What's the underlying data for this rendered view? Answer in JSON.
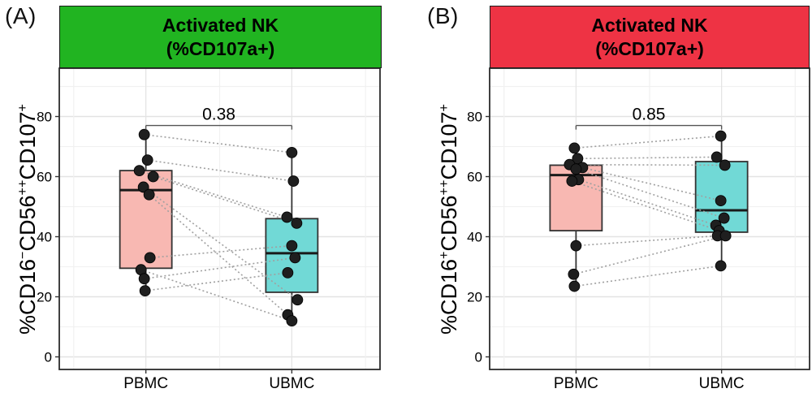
{
  "chart_data": [
    {
      "type": "box",
      "panel_tag": "(A)",
      "title_line1": "Activated NK",
      "title_line2": "(%CD107a+)",
      "header_bg": "#21B421",
      "ylabel": "%CD16-CD56++CD107+",
      "ylabel_segments": [
        [
          "%CD16",
          false
        ],
        [
          "−",
          true
        ],
        [
          "CD56",
          false
        ],
        [
          "++",
          true
        ],
        [
          "CD107",
          false
        ],
        [
          "+",
          true
        ]
      ],
      "categories": [
        "PBMC",
        "UBMC"
      ],
      "yticks": [
        0,
        20,
        40,
        60,
        80
      ],
      "yticks_minor": [
        10,
        30,
        50,
        70,
        90
      ],
      "ylim": [
        -4,
        96
      ],
      "p_value": "0.38",
      "bracket_y": 77,
      "boxes": [
        {
          "category": "PBMC",
          "fill": "#F8B8B2",
          "q1": 29.5,
          "median": 55.5,
          "q3": 62,
          "whisker_low": 22,
          "whisker_high": 74
        },
        {
          "category": "UBMC",
          "fill": "#71D9D6",
          "q1": 21.5,
          "median": 34.5,
          "q3": 46,
          "whisker_low": 12,
          "whisker_high": 68
        }
      ],
      "pairs": [
        {
          "pbmc": 74,
          "ubmc": 68,
          "jp": -2,
          "ju": 0
        },
        {
          "pbmc": 65.5,
          "ubmc": 58.5,
          "jp": 2,
          "ju": 2
        },
        {
          "pbmc": 62,
          "ubmc": 46.5,
          "jp": -8,
          "ju": -6
        },
        {
          "pbmc": 60,
          "ubmc": 44.5,
          "jp": 9,
          "ju": 6
        },
        {
          "pbmc": 56.5,
          "ubmc": 19,
          "jp": -3,
          "ju": 7
        },
        {
          "pbmc": 54,
          "ubmc": 14,
          "jp": 4,
          "ju": -5
        },
        {
          "pbmc": 33,
          "ubmc": 37,
          "jp": 5,
          "ju": 0
        },
        {
          "pbmc": 29,
          "ubmc": 12,
          "jp": -6,
          "ju": 0
        },
        {
          "pbmc": 26,
          "ubmc": 33,
          "jp": -2,
          "ju": 4
        },
        {
          "pbmc": 22,
          "ubmc": 28,
          "jp": -1,
          "ju": -5
        }
      ]
    },
    {
      "type": "box",
      "panel_tag": "(B)",
      "title_line1": "Activated NK",
      "title_line2": "(%CD107a+)",
      "header_bg": "#EE3344",
      "ylabel": "%CD16+CD56++CD107+",
      "ylabel_segments": [
        [
          "%CD16",
          false
        ],
        [
          "+",
          true
        ],
        [
          "CD56",
          false
        ],
        [
          "++",
          true
        ],
        [
          "CD107",
          false
        ],
        [
          "+",
          true
        ]
      ],
      "categories": [
        "PBMC",
        "UBMC"
      ],
      "yticks": [
        0,
        20,
        40,
        60,
        80
      ],
      "yticks_minor": [
        10,
        30,
        50,
        70,
        90
      ],
      "ylim": [
        -4,
        96
      ],
      "p_value": "0.85",
      "bracket_y": 77,
      "boxes": [
        {
          "category": "PBMC",
          "fill": "#F8B8B2",
          "q1": 42,
          "median": 60.5,
          "q3": 63.8,
          "whisker_low": 23.5,
          "whisker_high": 69.5
        },
        {
          "category": "UBMC",
          "fill": "#71D9D6",
          "q1": 41.5,
          "median": 48.8,
          "q3": 65,
          "whisker_low": 30.3,
          "whisker_high": 73.5
        }
      ],
      "pairs": [
        {
          "pbmc": 69.5,
          "ubmc": 73.5,
          "jp": -2,
          "ju": -1
        },
        {
          "pbmc": 66,
          "ubmc": 66.5,
          "jp": 2,
          "ju": -6
        },
        {
          "pbmc": 64,
          "ubmc": 63.8,
          "jp": -8,
          "ju": 4
        },
        {
          "pbmc": 63,
          "ubmc": 52,
          "jp": 8,
          "ju": -1
        },
        {
          "pbmc": 62.5,
          "ubmc": 46.2,
          "jp": 0,
          "ju": 3
        },
        {
          "pbmc": 59,
          "ubmc": 43.8,
          "jp": 3,
          "ju": -7
        },
        {
          "pbmc": 58.5,
          "ubmc": 42,
          "jp": -5,
          "ju": -3
        },
        {
          "pbmc": 37,
          "ubmc": 40.3,
          "jp": 0,
          "ju": -5
        },
        {
          "pbmc": 27.5,
          "ubmc": 40.3,
          "jp": -3,
          "ju": 5
        },
        {
          "pbmc": 23.5,
          "ubmc": 30.3,
          "jp": -2,
          "ju": -1
        }
      ]
    }
  ],
  "style": {
    "background": "#FFFFFF",
    "panel_border": "#2B2B2B",
    "grid_major": "#E3E3E3",
    "grid_minor": "#F1F1F1",
    "box_stroke": "#333333",
    "median_stroke": "#1A1A1A",
    "point_fill": "#1F1F1F",
    "point_stroke": "#000000",
    "pair_line": "#A0A0A0",
    "bracket_line": "#555555",
    "text_color": "#000000"
  }
}
